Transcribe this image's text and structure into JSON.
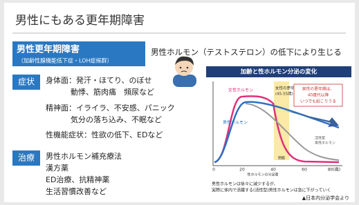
{
  "header": {
    "title": "男性にもある更年期障害"
  },
  "banner": {
    "title": "男性更年期障害",
    "subtitle": "（加齢性腺機能低下症・LOH症候群）",
    "cause": "男性ホルモン（テストステロン）の低下により生じる"
  },
  "symptoms": {
    "label": "症状",
    "lines": [
      "身体面：発汗・ほてり、のぼせ",
      "動悸、筋肉痛　頻尿など",
      "精神面：イライラ、不安感、パニック",
      "気分の落ち込み、不眠など",
      "性機能症状：性欲の低下、EDなど"
    ]
  },
  "treatment": {
    "label": "治療",
    "lines": [
      "男性ホルモン補充療法",
      "漢方薬",
      "ED治療、抗精神薬",
      "生活習慣改善など"
    ]
  },
  "figure": {
    "title": "加齢と性ホルモン分泌の変化",
    "labels": {
      "female": "女性ホルモン",
      "male": "男性ホルモン",
      "female_meno": "女性の更年期",
      "female_meno_range": "(45-55歳)",
      "male_meno": [
        "男性の更年期は、",
        "40歳代以降",
        "いつでも起こりうる"
      ],
      "active": [
        "活性型",
        "男性ホルモン"
      ],
      "menopause": "閉経",
      "y_axis": "性ホルモンの分泌量"
    },
    "x_ticks": [
      "0",
      "20",
      "40",
      "60",
      "80(歳)"
    ],
    "notes": [
      "男性ホルモンは徐々に減少するが、",
      "実際に体内で活躍する(活性型)男性ホルモンは急に下がっていく"
    ],
    "source": "▲日本内分泌学会より"
  }
}
